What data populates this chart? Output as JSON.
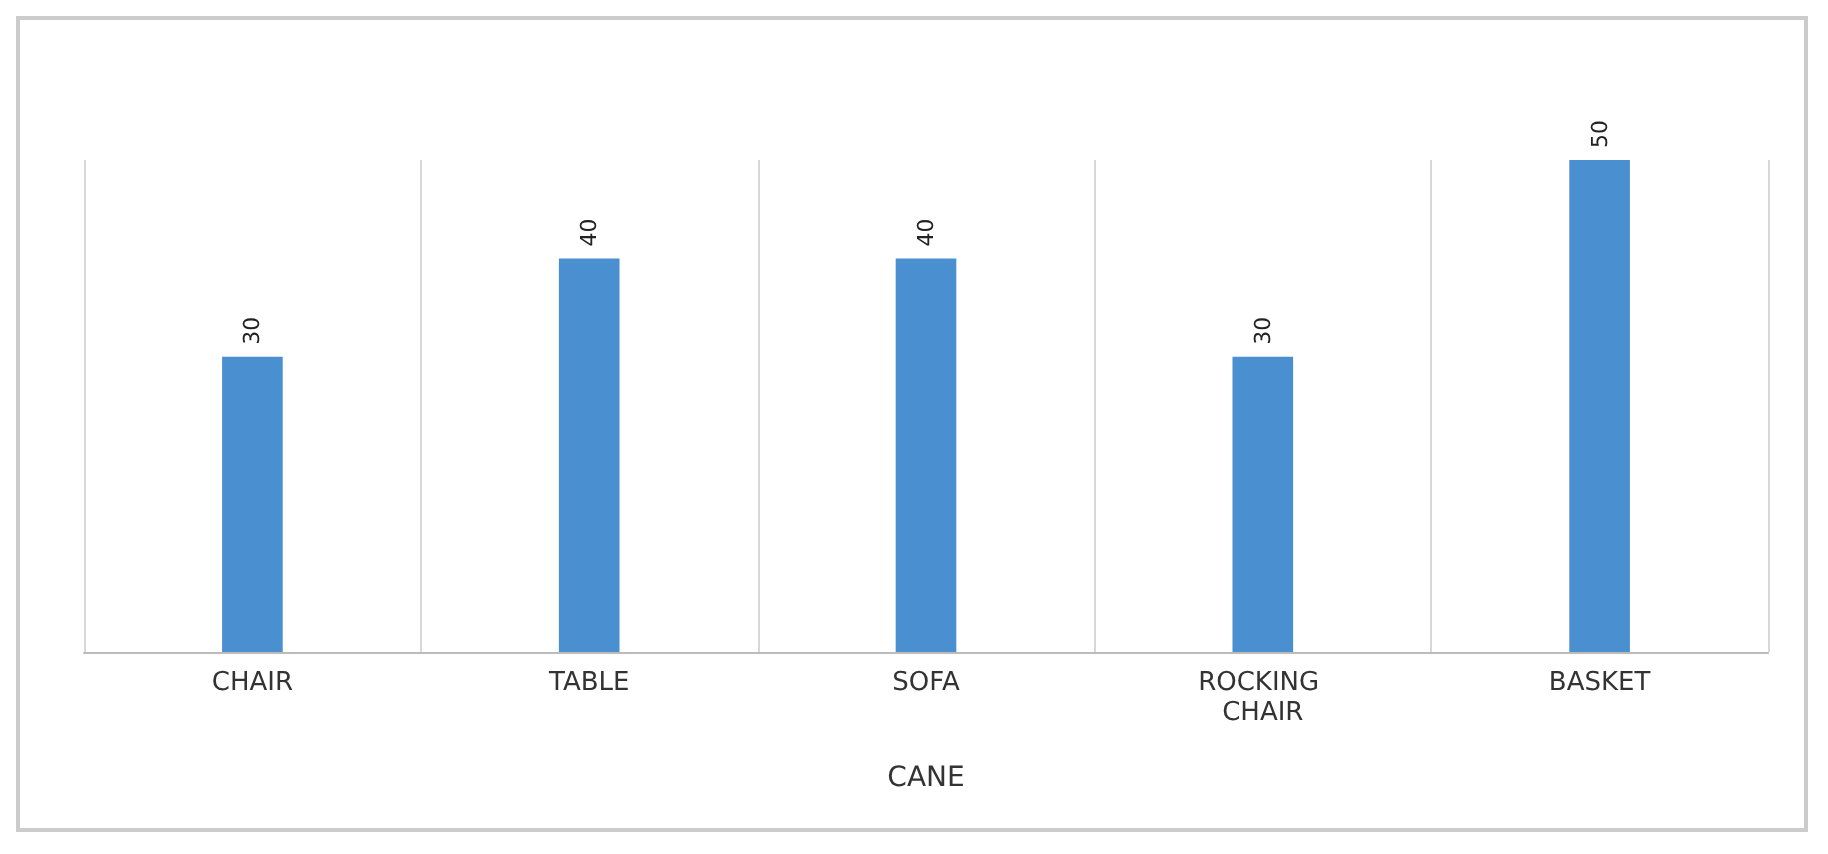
{
  "chart_data": {
    "type": "bar",
    "xlabel": "CANE",
    "categories": [
      "CHAIR",
      "TABLE",
      "SOFA",
      "ROCKING CHAIR",
      "BASKET"
    ],
    "values": [
      30,
      40,
      40,
      30,
      50
    ],
    "color": "#4a8fd0",
    "data_labels": true,
    "grid": "x"
  }
}
